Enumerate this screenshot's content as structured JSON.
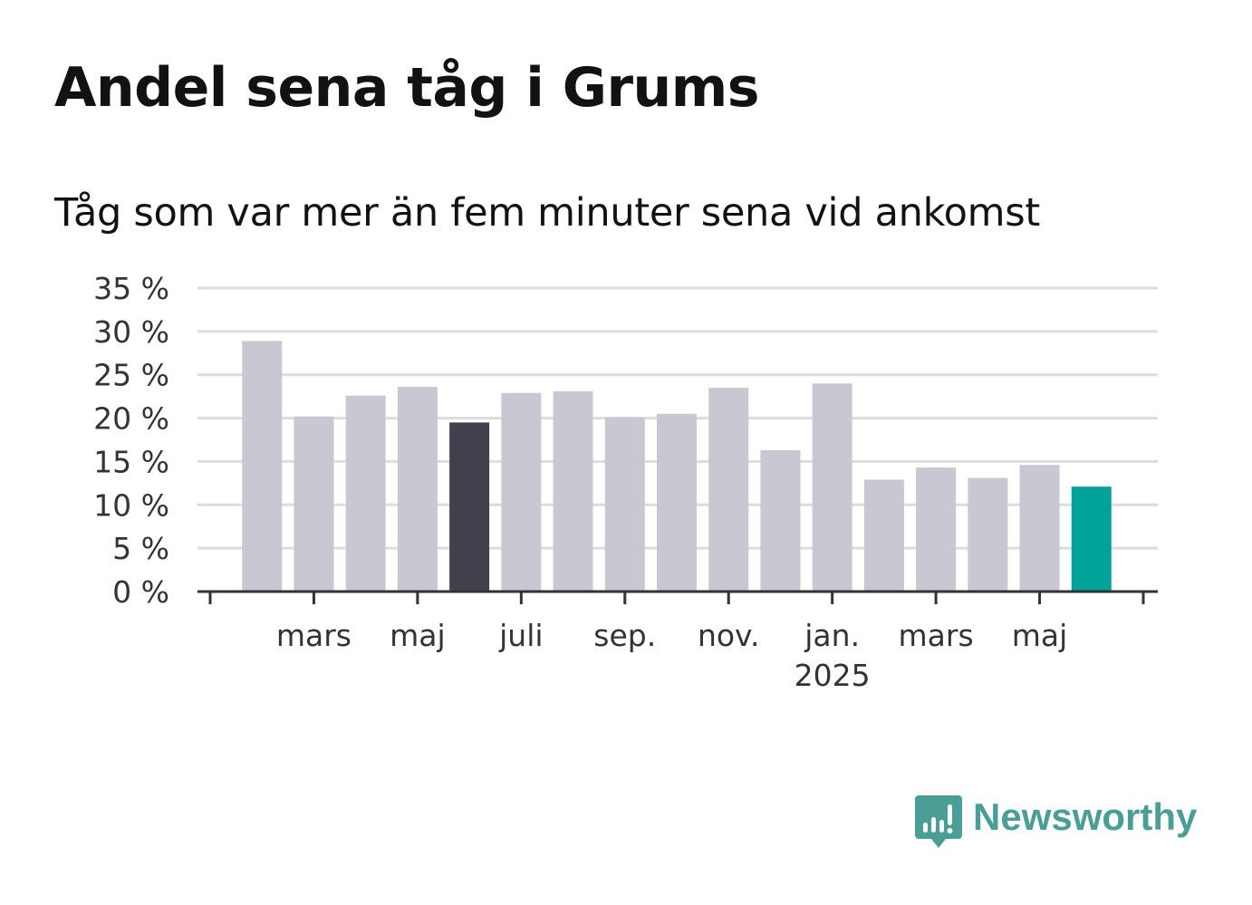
{
  "header": {
    "title": "Andel sena tåg i Grums",
    "subtitle": "Tåg som var mer än fem minuter sena vid ankomst"
  },
  "brand": {
    "name": "Newsworthy",
    "color": "#4a9e96"
  },
  "colors": {
    "bar_default": "#c8c7d2",
    "bar_highlight_dark": "#42404d",
    "bar_highlight_latest": "#00a398",
    "grid": "#dddddd",
    "axis": "#333333"
  },
  "chart_data": {
    "type": "bar",
    "title": "Andel sena tåg i Grums",
    "subtitle": "Tåg som var mer än fem minuter sena vid ankomst",
    "xlabel": "",
    "ylabel": "",
    "ylim": [
      0,
      35
    ],
    "y_ticks": [
      "0 %",
      "5 %",
      "10 %",
      "15 %",
      "20 %",
      "25 %",
      "30 %",
      "35 %"
    ],
    "y_tick_values": [
      0,
      5,
      10,
      15,
      20,
      25,
      30,
      35
    ],
    "grid": true,
    "categories": [
      "2024-02",
      "2024-03",
      "2024-04",
      "2024-05",
      "2024-06",
      "2024-07",
      "2024-08",
      "2024-09",
      "2024-10",
      "2024-11",
      "2024-12",
      "2025-01",
      "2025-02",
      "2025-03",
      "2025-04",
      "2025-05",
      "2025-06"
    ],
    "values": [
      28.9,
      20.2,
      22.6,
      23.6,
      19.5,
      22.9,
      23.1,
      20.1,
      20.5,
      23.5,
      16.3,
      24.0,
      12.9,
      14.3,
      13.1,
      14.6,
      12.1
    ],
    "highlight": {
      "2024-06": "bar_highlight_dark",
      "2025-06": "bar_highlight_latest"
    },
    "x_tick_labels": [
      {
        "category": "2024-03",
        "label": "mars",
        "year": ""
      },
      {
        "category": "2024-05",
        "label": "maj",
        "year": ""
      },
      {
        "category": "2024-07",
        "label": "juli",
        "year": ""
      },
      {
        "category": "2024-09",
        "label": "sep.",
        "year": ""
      },
      {
        "category": "2024-11",
        "label": "nov.",
        "year": ""
      },
      {
        "category": "2025-01",
        "label": "jan.",
        "year": "2025"
      },
      {
        "category": "2025-03",
        "label": "mars",
        "year": ""
      },
      {
        "category": "2025-05",
        "label": "maj",
        "year": ""
      }
    ]
  }
}
